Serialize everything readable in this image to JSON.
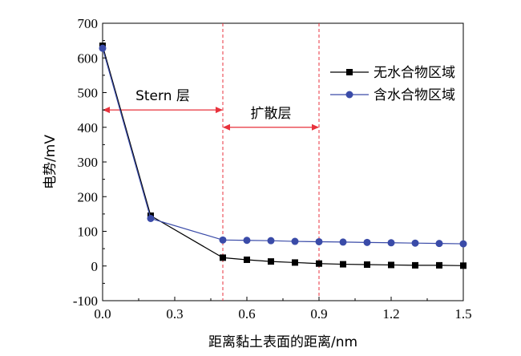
{
  "chart_data": {
    "type": "line",
    "xlabel": "距离黏土表面的距离/nm",
    "ylabel": "电势/mV",
    "xlim": [
      0,
      1.5
    ],
    "ylim": [
      -100,
      700
    ],
    "xticks": [
      "0.0",
      "0.3",
      "0.6",
      "0.9",
      "1.2",
      "1.5"
    ],
    "yticks": [
      "-100",
      "0",
      "100",
      "200",
      "300",
      "400",
      "500",
      "600",
      "700"
    ],
    "grid": false,
    "legend_position": "top-right",
    "series": [
      {
        "name": "无水合物区域",
        "color": "#000000",
        "marker": "square",
        "x": [
          0.0,
          0.2,
          0.5,
          0.6,
          0.7,
          0.8,
          0.9,
          1.0,
          1.1,
          1.2,
          1.3,
          1.4,
          1.5
        ],
        "y": [
          635,
          145,
          24,
          18,
          13,
          10,
          7,
          5,
          4,
          3,
          2,
          2,
          1
        ]
      },
      {
        "name": "含水合物区域",
        "color": "#3a4ba8",
        "marker": "circle",
        "x": [
          0.0,
          0.2,
          0.5,
          0.6,
          0.7,
          0.8,
          0.9,
          1.0,
          1.1,
          1.2,
          1.3,
          1.4,
          1.5
        ],
        "y": [
          628,
          137,
          75,
          74,
          73,
          71,
          70,
          69,
          68,
          67,
          66,
          65,
          64
        ]
      }
    ],
    "reference_lines": [
      {
        "axis": "x",
        "value": 0.5,
        "color": "#e8323c",
        "style": "dashed"
      },
      {
        "axis": "x",
        "value": 0.9,
        "color": "#e8323c",
        "style": "dashed"
      }
    ],
    "annotations": [
      {
        "text": "Stern 层",
        "from_x": 0.0,
        "to_x": 0.5,
        "y": 450,
        "arrow": "double",
        "color": "#e8323c"
      },
      {
        "text": "扩散层",
        "from_x": 0.5,
        "to_x": 0.9,
        "y": 400,
        "arrow": "double",
        "color": "#e8323c"
      }
    ]
  }
}
